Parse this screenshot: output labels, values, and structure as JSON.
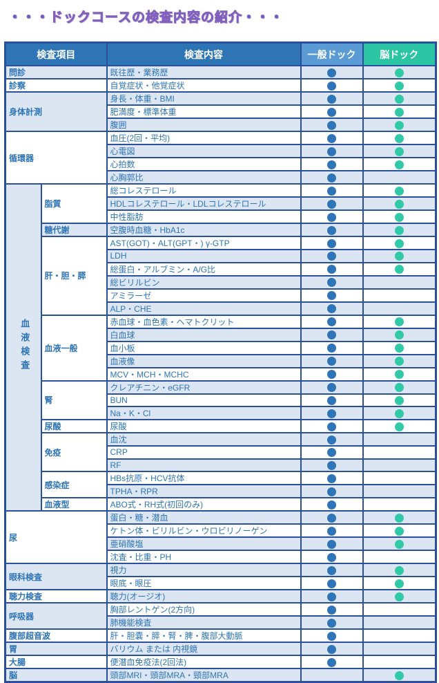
{
  "title": "・・・ドックコースの検査内容の紹介・・・",
  "colors": {
    "border": "#2a4f9c",
    "header_bg": "#2e75b6",
    "general_header_bg": "#5b9bd5",
    "brain_header_bg": "#2bc5a4",
    "row_tint": "#dce6f2",
    "text": "#2e74b5",
    "general_dot": "#2e74b6",
    "brain_dot": "#31c9a7",
    "title_fill": "#4565c4",
    "title_edge": "#8161bd"
  },
  "table": {
    "headers": {
      "item": "検査項目",
      "content": "検査内容",
      "general": "一般ドック",
      "brain": "脳ドック"
    },
    "legend": {
      "dot_meaning": "included"
    },
    "sections": [
      {
        "name": "問診",
        "tint": true,
        "rows": [
          {
            "content": "既往歴・業務歴",
            "general": true,
            "brain": true
          }
        ]
      },
      {
        "name": "診察",
        "tint": false,
        "rows": [
          {
            "content": "自覚症状・他覚症状",
            "general": true,
            "brain": true
          }
        ]
      },
      {
        "name": "身体計測",
        "tint": true,
        "rows": [
          {
            "content": "身長・体重・BMI",
            "general": true,
            "brain": true
          },
          {
            "content": "肥満度・標準体重",
            "general": true,
            "brain": true
          },
          {
            "content": "腹囲",
            "general": true,
            "brain": true
          }
        ]
      },
      {
        "name": "循環器",
        "tint": false,
        "rows": [
          {
            "content": "血圧(2回・平均)",
            "general": true,
            "brain": true
          },
          {
            "content": "心電図",
            "general": true,
            "brain": true
          },
          {
            "content": "心拍数",
            "general": true,
            "brain": true
          },
          {
            "content": "心胸郭比",
            "general": true,
            "brain": false
          }
        ]
      },
      {
        "name": "血液検査",
        "tint": true,
        "vertical": true,
        "subs": [
          {
            "name": "脂質",
            "tint": false,
            "rows": [
              {
                "content": "総コレステロール",
                "general": true,
                "brain": true
              },
              {
                "content": "HDLコレステロール・LDLコレステロール",
                "general": true,
                "brain": true
              },
              {
                "content": "中性脂肪",
                "general": true,
                "brain": true
              }
            ]
          },
          {
            "name": "糖代謝",
            "tint": true,
            "rows": [
              {
                "content": "空腹時血糖・HbA1c",
                "general": true,
                "brain": true
              }
            ]
          },
          {
            "name": "肝・胆・膵",
            "tint": false,
            "rows": [
              {
                "content": "AST(GOT)・ALT(GPT・) γ-GTP",
                "general": true,
                "brain": true
              },
              {
                "content": "LDH",
                "general": true,
                "brain": true
              },
              {
                "content": "総蛋白・アルブミン・A/G比",
                "general": true,
                "brain": true
              },
              {
                "content": "総ビリルビン",
                "general": true,
                "brain": false
              },
              {
                "content": "アミラーゼ",
                "general": true,
                "brain": false
              },
              {
                "content": "ALP・CHE",
                "general": true,
                "brain": false
              }
            ]
          },
          {
            "name": "血液一般",
            "tint": false,
            "rows": [
              {
                "content": "赤血球・血色素・ヘマトクリット",
                "general": true,
                "brain": true
              },
              {
                "content": "白血球",
                "general": true,
                "brain": true
              },
              {
                "content": "血小板",
                "general": true,
                "brain": true
              },
              {
                "content": "血液像",
                "general": true,
                "brain": true
              },
              {
                "content": "MCV・MCH・MCHC",
                "general": true,
                "brain": true
              }
            ]
          },
          {
            "name": "腎",
            "tint": false,
            "rows": [
              {
                "content": "クレアチニン・eGFR",
                "general": true,
                "brain": true
              },
              {
                "content": "BUN",
                "general": true,
                "brain": true
              },
              {
                "content": "Na・K・Cl",
                "general": true,
                "brain": true
              }
            ]
          },
          {
            "name": "尿酸",
            "tint": false,
            "rows": [
              {
                "content": "尿酸",
                "general": true,
                "brain": true
              }
            ]
          },
          {
            "name": "免疫",
            "tint": false,
            "rows": [
              {
                "content": "血沈",
                "general": true,
                "brain": false
              },
              {
                "content": "CRP",
                "general": true,
                "brain": false
              },
              {
                "content": "RF",
                "general": true,
                "brain": false
              }
            ]
          },
          {
            "name": "感染症",
            "tint": false,
            "rows": [
              {
                "content": "HBs抗原・HCV抗体",
                "general": true,
                "brain": false
              },
              {
                "content": "TPHA・RPR",
                "general": true,
                "brain": false
              }
            ]
          },
          {
            "name": "血液型",
            "tint": false,
            "rows": [
              {
                "content": "ABO式・RH式(初回のみ)",
                "general": true,
                "brain": false
              }
            ]
          }
        ]
      },
      {
        "name": "尿",
        "tint": false,
        "rows": [
          {
            "content": "蛋白・糖・潜血",
            "general": true,
            "brain": true
          },
          {
            "content": "ケトン体・ビリルビン・ウロビリノーゲン",
            "general": true,
            "brain": true
          },
          {
            "content": "亜硝酸塩",
            "general": true,
            "brain": true
          },
          {
            "content": "沈査・比重・PH",
            "general": true,
            "brain": false
          }
        ]
      },
      {
        "name": "眼科検査",
        "tint": true,
        "rows": [
          {
            "content": "視力",
            "general": true,
            "brain": true
          },
          {
            "content": "眼底・眼圧",
            "general": true,
            "brain": true
          }
        ]
      },
      {
        "name": "聴力検査",
        "tint": false,
        "rows": [
          {
            "content": "聴力(オージオ)",
            "general": true,
            "brain": true
          }
        ]
      },
      {
        "name": "呼吸器",
        "tint": true,
        "rows": [
          {
            "content": "胸部レントゲン(2方向)",
            "general": true,
            "brain": false
          },
          {
            "content": "肺機能検査",
            "general": true,
            "brain": false
          }
        ]
      },
      {
        "name": "腹部超音波",
        "tint": false,
        "rows": [
          {
            "content": "肝・胆嚢・膵・腎・脾・腹部大動脈",
            "general": true,
            "brain": false
          }
        ]
      },
      {
        "name": "胃",
        "tint": true,
        "rows": [
          {
            "content": "バリウム  または  内視鏡",
            "general": true,
            "brain": false
          }
        ]
      },
      {
        "name": "大腸",
        "tint": false,
        "rows": [
          {
            "content": "便潜血免疫法(2回法)",
            "general": true,
            "brain": false
          }
        ]
      },
      {
        "name": "脳",
        "tint": true,
        "rows": [
          {
            "content": "頭部MRI・頭部MRA・頸部MRA",
            "general": false,
            "brain": true
          }
        ]
      }
    ]
  }
}
